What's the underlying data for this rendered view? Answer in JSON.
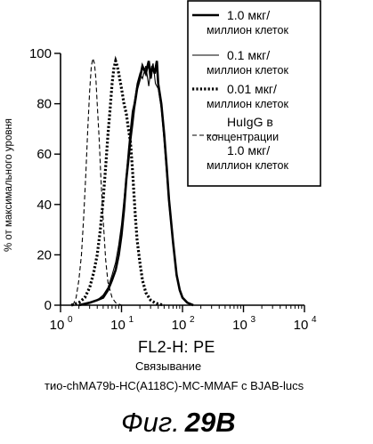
{
  "chart_data": {
    "type": "line",
    "xscale": "log",
    "xlim": [
      1,
      10000
    ],
    "ylim": [
      0,
      100
    ],
    "x_tick_values": [
      1,
      10,
      100,
      1000,
      10000
    ],
    "x_tick_labels": [
      {
        "base": "10",
        "exp": "0"
      },
      {
        "base": "10",
        "exp": "1"
      },
      {
        "base": "10",
        "exp": "2"
      },
      {
        "base": "10",
        "exp": "3"
      },
      {
        "base": "10",
        "exp": "4"
      }
    ],
    "y_ticks": [
      0,
      20,
      40,
      60,
      80,
      100
    ],
    "y_tick_labels": [
      "0",
      "20",
      "40",
      "60",
      "80",
      "100"
    ],
    "ylabel": "% от максимального уровня",
    "xlabel": "FL2-H: PE",
    "caption_line1": "Связывание",
    "caption_line2": "тио-chMA79b-HC(A118C)-MC-MMAF с BJAB-lucs",
    "figure_label": {
      "prefix": "Фиг.",
      "number": "29B"
    },
    "legend_position": "top-right",
    "series": [
      {
        "name_lines": [
          "1.0 мкг/",
          "миллион клеток"
        ],
        "style": "thick-solid",
        "x": [
          2,
          3,
          4,
          5,
          6,
          7,
          8,
          9,
          10,
          11,
          12,
          13,
          14,
          15,
          16,
          17,
          18,
          20,
          22,
          25,
          28,
          30,
          32,
          35,
          38,
          40,
          45,
          50,
          55,
          60,
          70,
          80,
          90,
          100,
          120,
          150
        ],
        "y": [
          0,
          1,
          2,
          3,
          6,
          10,
          14,
          20,
          28,
          38,
          50,
          58,
          66,
          72,
          78,
          82,
          86,
          90,
          95,
          92,
          97,
          90,
          95,
          92,
          97,
          88,
          80,
          68,
          55,
          42,
          25,
          12,
          6,
          3,
          1,
          0
        ]
      },
      {
        "name_lines": [
          "0.1 мкг/",
          "миллион клеток"
        ],
        "style": "thin-solid",
        "x": [
          2,
          3,
          4,
          5,
          6,
          7,
          8,
          9,
          10,
          11,
          12,
          13,
          14,
          15,
          16,
          17,
          18,
          20,
          22,
          25,
          28,
          30,
          33,
          36,
          40,
          45,
          50,
          55,
          60,
          70,
          80,
          90,
          100,
          120,
          150
        ],
        "y": [
          0,
          1,
          2,
          4,
          7,
          12,
          17,
          24,
          32,
          42,
          52,
          62,
          70,
          77,
          80,
          84,
          88,
          92,
          90,
          95,
          87,
          93,
          96,
          88,
          86,
          78,
          65,
          52,
          40,
          24,
          12,
          6,
          3,
          1,
          0
        ]
      },
      {
        "name_lines": [
          "0.01 мкг/",
          "миллион клеток"
        ],
        "style": "dotted-thick",
        "x": [
          1.5,
          2,
          2.5,
          3,
          3.5,
          4,
          4.5,
          5,
          5.5,
          6,
          6.5,
          7,
          7.5,
          8,
          8.5,
          9,
          10,
          11,
          12,
          13,
          14,
          15,
          16,
          17,
          18,
          20,
          22,
          25,
          30,
          35,
          40,
          50
        ],
        "y": [
          0,
          1,
          3,
          7,
          13,
          20,
          30,
          42,
          55,
          68,
          78,
          88,
          94,
          97,
          95,
          92,
          86,
          80,
          76,
          70,
          65,
          55,
          44,
          34,
          26,
          17,
          10,
          5,
          2,
          1,
          0.5,
          0
        ]
      },
      {
        "name_lines": [
          "HuIgG в",
          "концентрации",
          "1.0 мкг/",
          "миллион клеток"
        ],
        "style": "dashed",
        "x": [
          1.6,
          1.8,
          2,
          2.2,
          2.4,
          2.6,
          2.8,
          3,
          3.2,
          3.4,
          3.6,
          3.8,
          4,
          4.3,
          4.6,
          5,
          5.5,
          6,
          7,
          8,
          9,
          10
        ],
        "y": [
          0,
          3,
          10,
          20,
          35,
          52,
          70,
          85,
          95,
          98,
          96,
          90,
          80,
          66,
          50,
          34,
          18,
          9,
          3,
          1,
          0.5,
          0
        ]
      }
    ]
  }
}
